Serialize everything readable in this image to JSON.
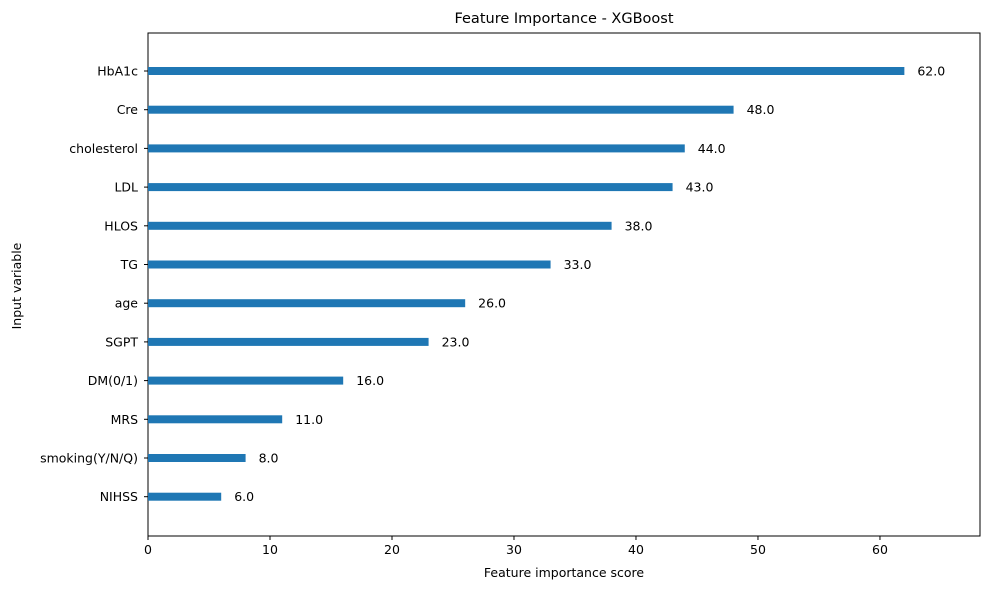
{
  "chart_data": {
    "type": "bar",
    "orientation": "horizontal",
    "title": "Feature Importance - XGBoost",
    "xlabel": "Feature importance score",
    "ylabel": "Input variable",
    "xlim": [
      0,
      68.2
    ],
    "xticks": [
      0,
      10,
      20,
      30,
      40,
      50,
      60
    ],
    "grid": false,
    "bar_color": "#1f77b4",
    "categories": [
      "HbA1c",
      "Cre",
      "cholesterol",
      "LDL",
      "HLOS",
      "TG",
      "age",
      "SGPT",
      "DM(0/1)",
      "MRS",
      "smoking(Y/N/Q)",
      "NIHSS"
    ],
    "values": [
      62,
      48,
      44,
      43,
      38,
      33,
      26,
      23,
      16,
      11,
      8,
      6
    ],
    "value_labels": [
      "62.0",
      "48.0",
      "44.0",
      "43.0",
      "38.0",
      "33.0",
      "26.0",
      "23.0",
      "16.0",
      "11.0",
      "8.0",
      "6.0"
    ]
  }
}
